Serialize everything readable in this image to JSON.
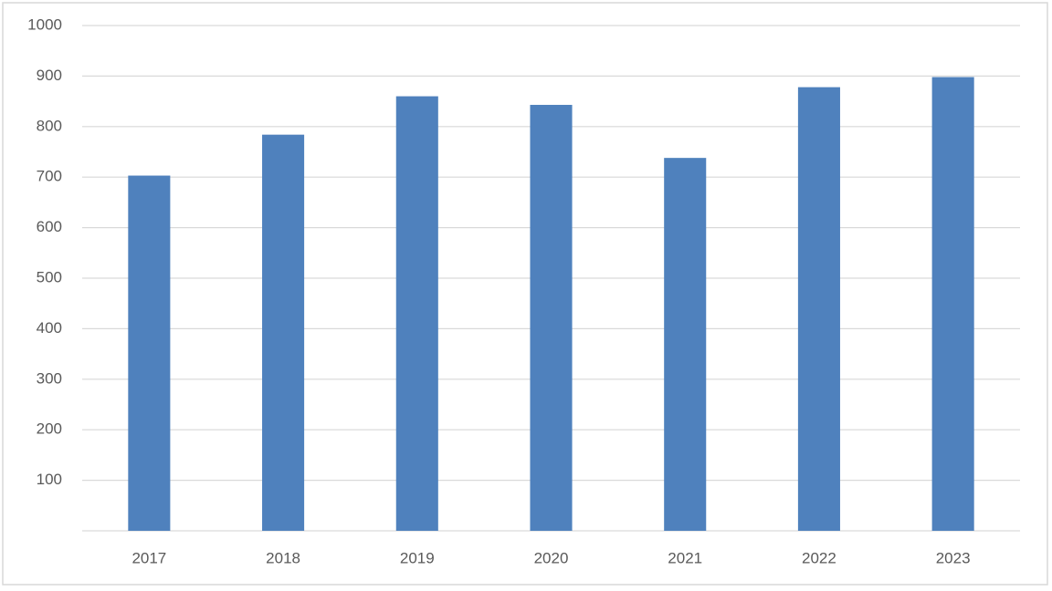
{
  "chart_data": {
    "type": "bar",
    "categories": [
      "2017",
      "2018",
      "2019",
      "2020",
      "2021",
      "2022",
      "2023"
    ],
    "values": [
      703,
      784,
      860,
      843,
      738,
      878,
      898
    ],
    "color": "#4f81bd",
    "ylim": [
      0,
      1000
    ],
    "yticks": [
      100,
      200,
      300,
      400,
      500,
      600,
      700,
      800,
      900,
      1000
    ],
    "grid": true
  }
}
